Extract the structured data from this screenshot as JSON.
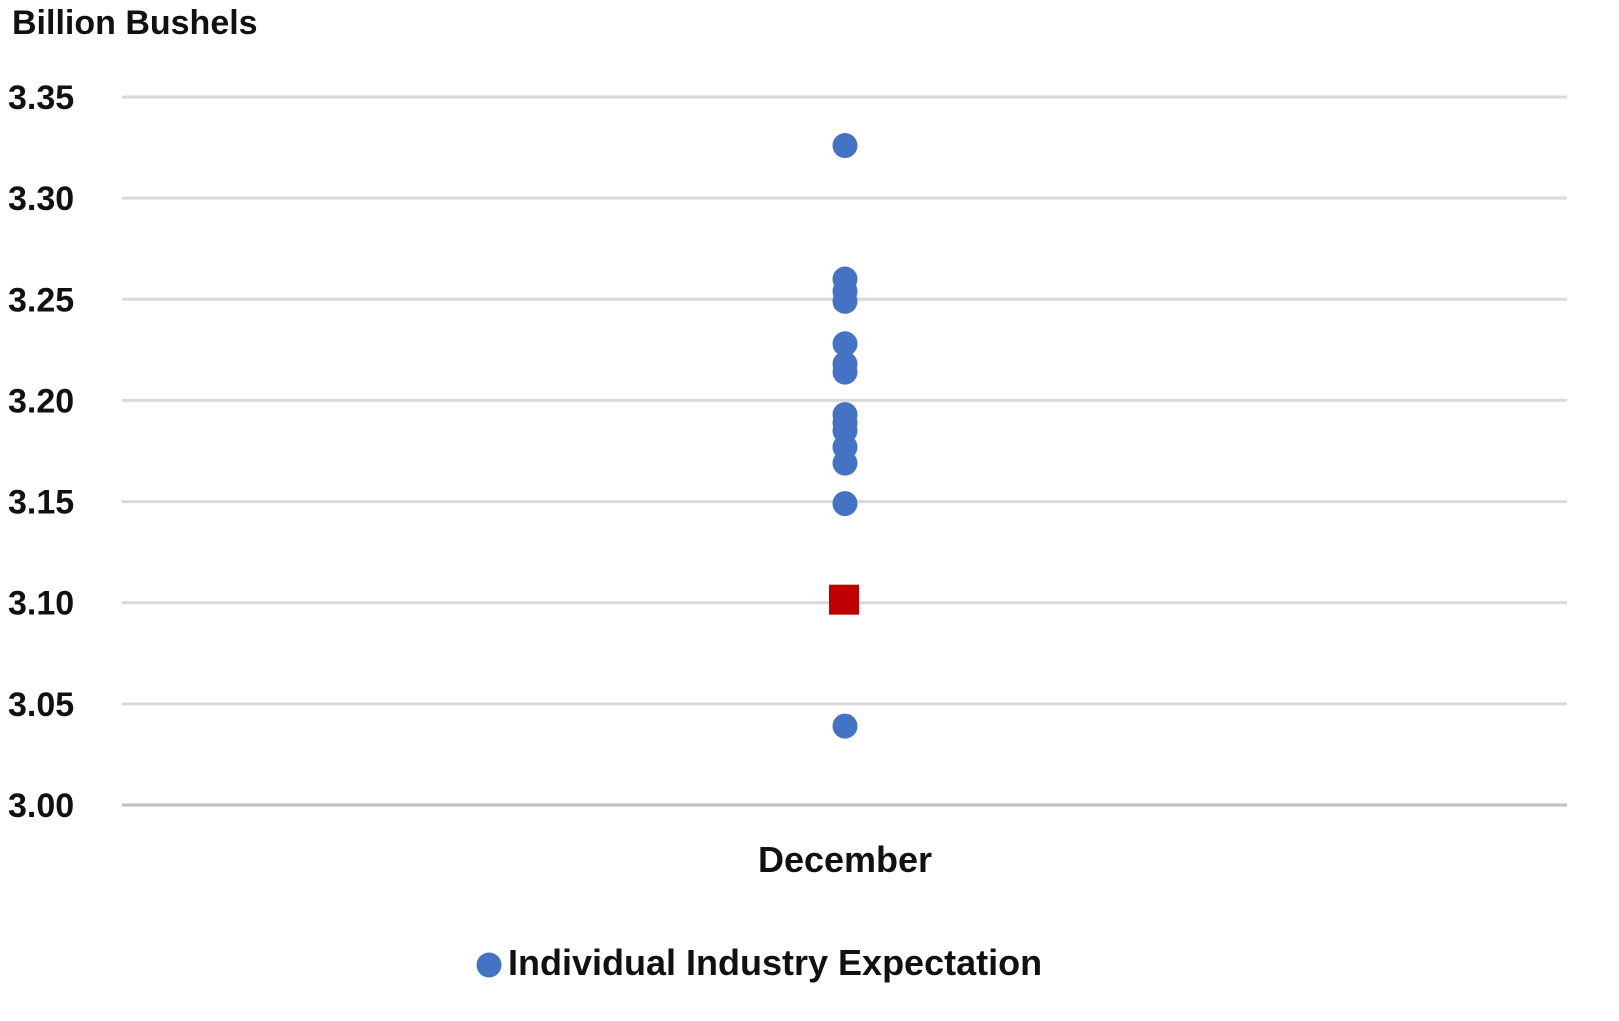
{
  "chart_data": {
    "type": "scatter",
    "title": "",
    "ylabel": "Billion Bushels",
    "xlabel": "",
    "categories": [
      "December"
    ],
    "ylim": [
      3.0,
      3.35
    ],
    "yticks": [
      "3.35",
      "3.30",
      "3.25",
      "3.20",
      "3.15",
      "3.10",
      "3.05",
      "3.00"
    ],
    "grid": true,
    "legend_position": "bottom",
    "series": [
      {
        "name": "Individual Industry Expectation",
        "marker": "circle",
        "color": "#4472C4",
        "values": [
          3.326,
          3.26,
          3.254,
          3.249,
          3.228,
          3.218,
          3.214,
          3.193,
          3.189,
          3.185,
          3.177,
          3.169,
          3.149,
          3.039
        ]
      },
      {
        "marker": "square",
        "color": "#C00000",
        "values": [
          3.101
        ]
      }
    ],
    "gridline_color": "#d9d9d9",
    "axis_line_color": "#bfbfbf"
  }
}
